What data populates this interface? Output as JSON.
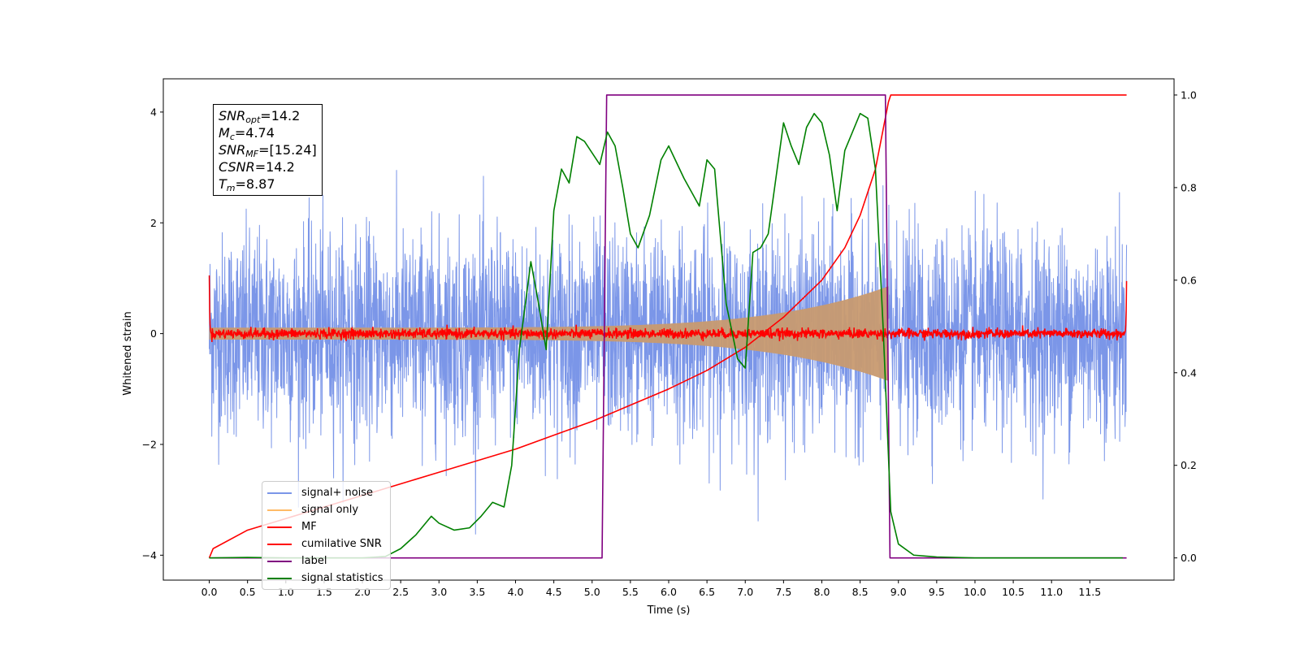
{
  "chart_data": {
    "type": "line",
    "title": "",
    "xlabel": "Time (s)",
    "ylabel": "Whitened strain",
    "y2label": "",
    "xlim": [
      -0.6,
      12.6
    ],
    "ylim": [
      -4.45,
      4.6
    ],
    "y2lim": [
      -0.048,
      1.035
    ],
    "x_ticks": [
      0.0,
      0.5,
      1.0,
      1.5,
      2.0,
      2.5,
      3.0,
      3.5,
      4.0,
      4.5,
      5.0,
      5.5,
      6.0,
      6.5,
      7.0,
      7.5,
      8.0,
      8.5,
      9.0,
      9.5,
      10.0,
      10.5,
      11.0,
      11.5
    ],
    "x_tick_labels": [
      "0.0",
      "0.5",
      "1.0",
      "1.5",
      "2.0",
      "2.5",
      "3.0",
      "3.5",
      "4.0",
      "4.5",
      "5.0",
      "5.5",
      "6.0",
      "6.5",
      "7.0",
      "7.5",
      "8.0",
      "8.5",
      "9.0",
      "9.5",
      "10.0",
      "10.5",
      "11.0",
      "11.5"
    ],
    "y_ticks": [
      -4,
      -2,
      0,
      2,
      4
    ],
    "y_tick_labels": [
      "−4",
      "−2",
      "0",
      "2",
      "4"
    ],
    "y2_ticks": [
      0.0,
      0.2,
      0.4,
      0.6,
      0.8,
      1.0
    ],
    "y2_tick_labels": [
      "0.0",
      "0.2",
      "0.4",
      "0.6",
      "0.8",
      "1.0"
    ],
    "grid": false,
    "legend_position": "lower-left",
    "annotation": {
      "lines": [
        {
          "name": "SNR",
          "sub": "opt",
          "value": "=14.2"
        },
        {
          "name": "M",
          "sub": "c",
          "value": "=4.74"
        },
        {
          "name": "SNR",
          "sub": "MF",
          "value": "=[15.24]"
        },
        {
          "name": "CSNR",
          "sub": "",
          "value": "=14.2"
        },
        {
          "name": "T",
          "sub": "m",
          "value": "=8.87"
        }
      ]
    },
    "series": [
      {
        "name": "signal+ noise",
        "axis": "left",
        "color": "#7b96e8",
        "kind": "noise_band",
        "amplitude_std": 0.9,
        "x_range": [
          0.0,
          11.98
        ]
      },
      {
        "name": "signal only",
        "axis": "left",
        "color": "#ffbb66",
        "kind": "chirp",
        "x_range": [
          0.0,
          8.87
        ],
        "envelope_start": 0.12,
        "envelope_end": 0.95
      },
      {
        "name": "MF",
        "axis": "left",
        "color": "#ff0000",
        "kind": "noisy_flat",
        "x_range": [
          0.0,
          11.98
        ],
        "level": 0.0,
        "edge_start": 1.05,
        "edge_end": 0.95
      },
      {
        "name": "cumilative SNR",
        "axis": "right",
        "color": "#ff0000",
        "x": [
          0.0,
          0.05,
          0.5,
          1.0,
          1.5,
          2.0,
          2.5,
          3.0,
          3.5,
          4.0,
          4.5,
          5.0,
          5.5,
          6.0,
          6.5,
          7.0,
          7.5,
          8.0,
          8.3,
          8.5,
          8.7,
          8.87,
          8.9,
          11.98
        ],
        "y": [
          0.0,
          0.02,
          0.06,
          0.085,
          0.11,
          0.135,
          0.16,
          0.185,
          0.21,
          0.235,
          0.265,
          0.295,
          0.33,
          0.365,
          0.405,
          0.455,
          0.52,
          0.6,
          0.67,
          0.74,
          0.84,
          0.985,
          1.0,
          1.0
        ]
      },
      {
        "name": "label",
        "axis": "right",
        "color": "#800080",
        "x": [
          0.0,
          5.13,
          5.19,
          8.83,
          8.89,
          11.98
        ],
        "y": [
          0.0,
          0.0,
          1.0,
          1.0,
          0.0,
          0.0
        ]
      },
      {
        "name": "signal statistics",
        "axis": "right",
        "color": "#008000",
        "x": [
          0.0,
          0.5,
          1.0,
          1.5,
          2.0,
          2.3,
          2.5,
          2.7,
          2.9,
          3.0,
          3.2,
          3.4,
          3.55,
          3.7,
          3.85,
          3.95,
          4.05,
          4.2,
          4.3,
          4.4,
          4.5,
          4.6,
          4.7,
          4.8,
          4.9,
          5.1,
          5.2,
          5.3,
          5.4,
          5.5,
          5.6,
          5.75,
          5.9,
          6.0,
          6.2,
          6.4,
          6.5,
          6.6,
          6.75,
          6.9,
          7.0,
          7.1,
          7.2,
          7.3,
          7.4,
          7.5,
          7.6,
          7.7,
          7.8,
          7.9,
          8.0,
          8.1,
          8.2,
          8.3,
          8.4,
          8.5,
          8.6,
          8.7,
          8.8,
          8.9,
          9.0,
          9.2,
          9.5,
          10.0,
          11.0,
          11.93
        ],
        "y": [
          0.0,
          0.001,
          0.0,
          0.0,
          0.0,
          0.003,
          0.02,
          0.05,
          0.09,
          0.075,
          0.06,
          0.065,
          0.09,
          0.12,
          0.11,
          0.2,
          0.45,
          0.64,
          0.55,
          0.45,
          0.75,
          0.84,
          0.81,
          0.91,
          0.9,
          0.85,
          0.92,
          0.89,
          0.8,
          0.7,
          0.67,
          0.74,
          0.86,
          0.89,
          0.82,
          0.76,
          0.86,
          0.84,
          0.55,
          0.43,
          0.41,
          0.66,
          0.67,
          0.7,
          0.82,
          0.94,
          0.89,
          0.85,
          0.93,
          0.96,
          0.94,
          0.87,
          0.75,
          0.88,
          0.92,
          0.96,
          0.95,
          0.84,
          0.5,
          0.1,
          0.03,
          0.006,
          0.002,
          0.0,
          0.0,
          0.0
        ]
      }
    ]
  }
}
